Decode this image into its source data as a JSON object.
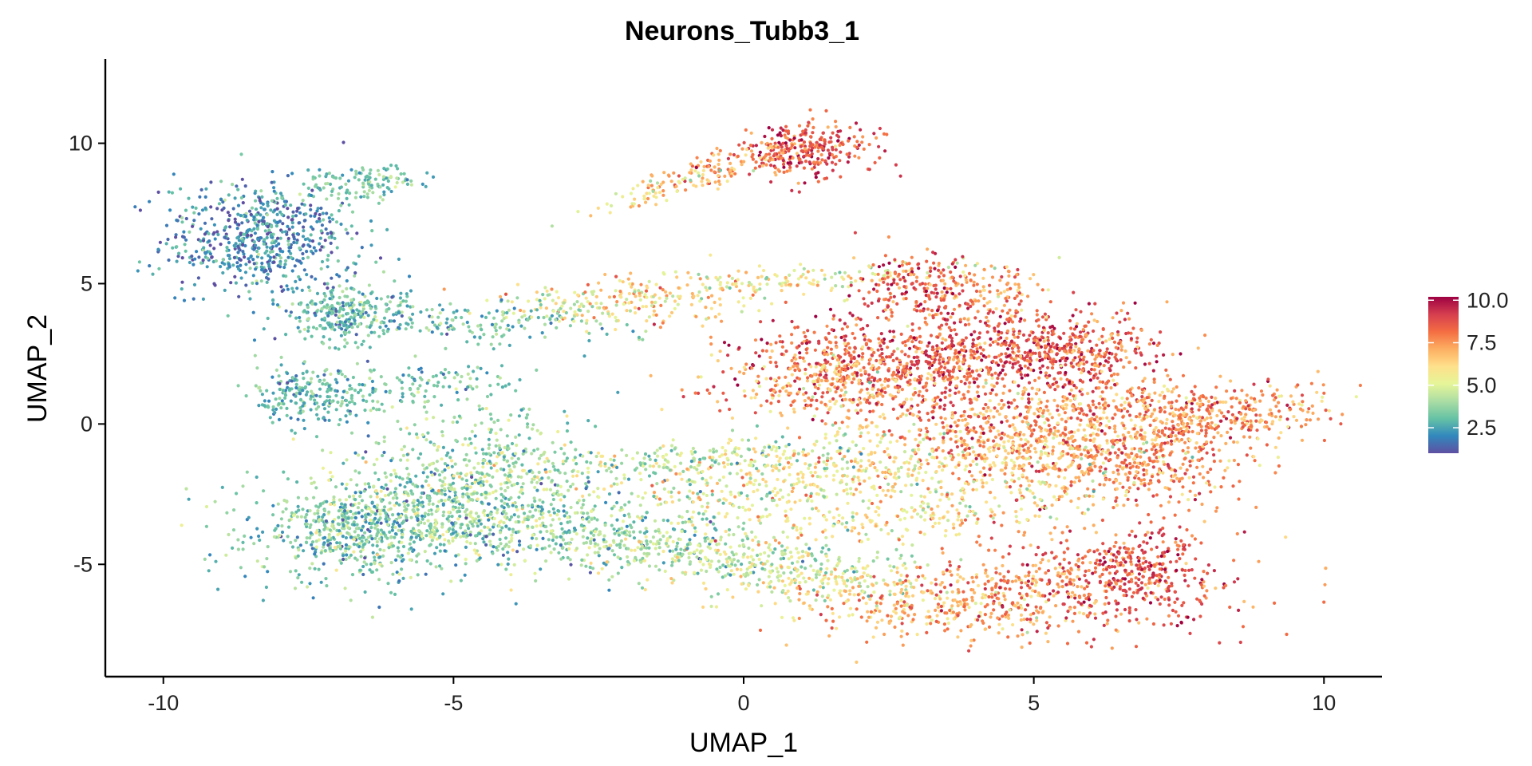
{
  "chart_data": {
    "type": "scatter",
    "title": "Neurons_Tubb3_1",
    "xlabel": "UMAP_1",
    "ylabel": "UMAP_2",
    "xlim": [
      -11,
      11
    ],
    "ylim": [
      -9,
      13
    ],
    "xticks": [
      -10,
      -5,
      0,
      5,
      10
    ],
    "xtick_labels": [
      "-10",
      "-5",
      "0",
      "5",
      "10"
    ],
    "yticks": [
      -5,
      0,
      5,
      10
    ],
    "ytick_labels": [
      "-5",
      "0",
      "5",
      "10"
    ],
    "grid": false,
    "legend": {
      "placement": "right",
      "type": "colorbar",
      "range": [
        1.0,
        10.2
      ],
      "ticks": [
        2.5,
        5.0,
        7.5,
        10.0
      ],
      "tick_labels": [
        "2.5",
        "5.0",
        "7.5",
        "10.0"
      ],
      "colors": [
        "#5E4FA2",
        "#3288BD",
        "#66C2A5",
        "#ABDDA4",
        "#E6F598",
        "#FEE08B",
        "#FDAE61",
        "#F46D43",
        "#D53E4F",
        "#9E0142"
      ]
    },
    "clusters": [
      {
        "cx": -8.3,
        "cy": 6.6,
        "sx": 0.85,
        "sy": 1.0,
        "rot": 0,
        "n": 650,
        "value": 2.1,
        "spread": 0.9
      },
      {
        "cx": -6.6,
        "cy": 8.6,
        "sx": 0.6,
        "sy": 0.3,
        "rot": 20,
        "n": 120,
        "value": 3.4,
        "spread": 0.8
      },
      {
        "cx": -6.8,
        "cy": 4.0,
        "sx": 0.55,
        "sy": 0.55,
        "rot": 0,
        "n": 260,
        "value": 3.0,
        "spread": 0.8
      },
      {
        "cx": -5.0,
        "cy": 3.6,
        "sx": 1.3,
        "sy": 0.35,
        "rot": -5,
        "n": 160,
        "value": 3.1,
        "spread": 0.8
      },
      {
        "cx": -7.4,
        "cy": 1.0,
        "sx": 0.5,
        "sy": 0.5,
        "rot": 0,
        "n": 200,
        "value": 3.0,
        "spread": 0.8
      },
      {
        "cx": -5.8,
        "cy": 1.3,
        "sx": 1.1,
        "sy": 0.45,
        "rot": 10,
        "n": 150,
        "value": 3.2,
        "spread": 0.8
      },
      {
        "cx": -6.6,
        "cy": -3.8,
        "sx": 1.0,
        "sy": 0.9,
        "rot": 0,
        "n": 700,
        "value": 3.4,
        "spread": 1.0
      },
      {
        "cx": -4.6,
        "cy": -2.2,
        "sx": 1.0,
        "sy": 1.3,
        "rot": 0,
        "n": 600,
        "value": 3.9,
        "spread": 1.1
      },
      {
        "cx": -3.0,
        "cy": -3.6,
        "sx": 1.8,
        "sy": 0.7,
        "rot": -8,
        "n": 400,
        "value": 3.6,
        "spread": 1.0
      },
      {
        "cx": -1.0,
        "cy": -4.5,
        "sx": 1.6,
        "sy": 0.45,
        "rot": -8,
        "n": 280,
        "value": 4.2,
        "spread": 1.0
      },
      {
        "cx": 1.0,
        "cy": -5.4,
        "sx": 1.2,
        "sy": 0.5,
        "rot": -12,
        "n": 220,
        "value": 5.0,
        "spread": 1.0
      },
      {
        "cx": 3.4,
        "cy": -6.4,
        "sx": 1.4,
        "sy": 0.7,
        "rot": 0,
        "n": 380,
        "value": 7.0,
        "spread": 1.1
      },
      {
        "cx": 6.2,
        "cy": -5.6,
        "sx": 1.2,
        "sy": 0.9,
        "rot": 0,
        "n": 500,
        "value": 8.3,
        "spread": 1.0
      },
      {
        "cx": 6.9,
        "cy": -4.7,
        "sx": 0.35,
        "sy": 0.7,
        "rot": 0,
        "n": 110,
        "value": 9.0,
        "spread": 0.8
      },
      {
        "cx": 1.1,
        "cy": 9.8,
        "sx": 0.55,
        "sy": 0.5,
        "rot": 25,
        "n": 280,
        "value": 8.8,
        "spread": 1.0
      },
      {
        "cx": -0.3,
        "cy": 9.2,
        "sx": 0.7,
        "sy": 0.28,
        "rot": 30,
        "n": 110,
        "value": 7.4,
        "spread": 1.0
      },
      {
        "cx": -1.5,
        "cy": 8.3,
        "sx": 0.8,
        "sy": 0.2,
        "rot": 35,
        "n": 60,
        "value": 5.8,
        "spread": 1.0
      },
      {
        "cx": -1.6,
        "cy": 4.5,
        "sx": 1.3,
        "sy": 0.45,
        "rot": 5,
        "n": 200,
        "value": 6.2,
        "spread": 1.1
      },
      {
        "cx": -3.2,
        "cy": 4.0,
        "sx": 0.7,
        "sy": 0.3,
        "rot": 0,
        "n": 70,
        "value": 4.4,
        "spread": 1.0
      },
      {
        "cx": 1.2,
        "cy": 5.1,
        "sx": 1.4,
        "sy": 0.3,
        "rot": 8,
        "n": 120,
        "value": 5.2,
        "spread": 1.0
      },
      {
        "cx": 3.0,
        "cy": 4.9,
        "sx": 0.5,
        "sy": 0.6,
        "rot": 0,
        "n": 180,
        "value": 8.6,
        "spread": 1.0
      },
      {
        "cx": 4.4,
        "cy": 4.7,
        "sx": 0.45,
        "sy": 0.5,
        "rot": 0,
        "n": 90,
        "value": 7.6,
        "spread": 1.0
      },
      {
        "cx": 3.4,
        "cy": 2.3,
        "sx": 1.6,
        "sy": 0.9,
        "rot": 0,
        "n": 900,
        "value": 8.6,
        "spread": 1.0
      },
      {
        "cx": 5.6,
        "cy": 2.7,
        "sx": 0.7,
        "sy": 0.7,
        "rot": 0,
        "n": 300,
        "value": 8.4,
        "spread": 1.0
      },
      {
        "cx": 1.6,
        "cy": 1.4,
        "sx": 1.0,
        "sy": 0.6,
        "rot": 10,
        "n": 300,
        "value": 7.2,
        "spread": 1.2
      },
      {
        "cx": 7.8,
        "cy": 0.4,
        "sx": 1.3,
        "sy": 0.55,
        "rot": 0,
        "n": 460,
        "value": 7.6,
        "spread": 1.0
      },
      {
        "cx": 4.8,
        "cy": -0.4,
        "sx": 1.4,
        "sy": 0.9,
        "rot": 0,
        "n": 650,
        "value": 7.3,
        "spread": 1.2
      },
      {
        "cx": 6.8,
        "cy": -1.5,
        "sx": 1.0,
        "sy": 0.6,
        "rot": 0,
        "n": 300,
        "value": 7.8,
        "spread": 1.0
      },
      {
        "cx": 2.5,
        "cy": -1.6,
        "sx": 2.0,
        "sy": 0.45,
        "rot": 8,
        "n": 320,
        "value": 5.9,
        "spread": 1.3
      },
      {
        "cx": 0.0,
        "cy": -1.0,
        "sx": 1.5,
        "sy": 0.35,
        "rot": 12,
        "n": 160,
        "value": 5.1,
        "spread": 1.2
      },
      {
        "cx": 3.0,
        "cy": -3.2,
        "sx": 2.0,
        "sy": 0.45,
        "rot": 12,
        "n": 260,
        "value": 6.0,
        "spread": 1.2
      },
      {
        "cx": 0.3,
        "cy": -2.6,
        "sx": 1.6,
        "sy": 0.35,
        "rot": 5,
        "n": 140,
        "value": 4.9,
        "spread": 1.2
      },
      {
        "cx": -1.8,
        "cy": -1.5,
        "sx": 1.3,
        "sy": 0.4,
        "rot": 0,
        "n": 120,
        "value": 4.2,
        "spread": 1.2
      }
    ]
  }
}
